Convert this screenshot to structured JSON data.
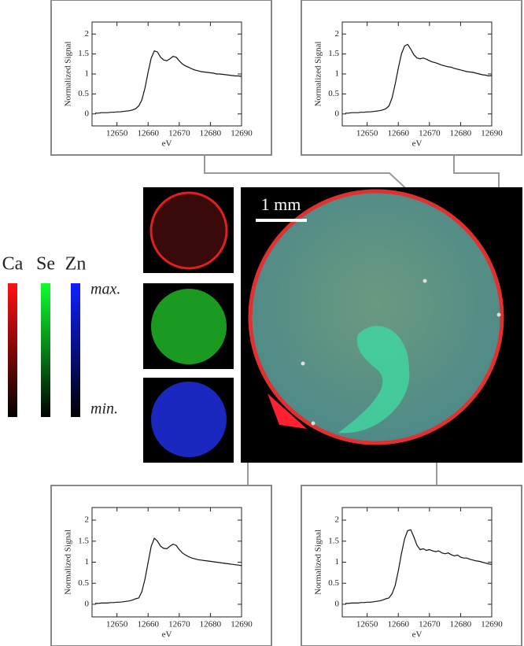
{
  "chart_data": [
    {
      "type": "line",
      "x_label": "eV",
      "y_label": "Normalized Signal",
      "x": [
        12643,
        12644,
        12645,
        12646,
        12647,
        12648,
        12649,
        12650,
        12651,
        12652,
        12653,
        12654,
        12655,
        12656,
        12657,
        12658,
        12659,
        12660,
        12661,
        12662,
        12663,
        12664,
        12665,
        12666,
        12667,
        12668,
        12669,
        12670,
        12671,
        12672,
        12673,
        12674,
        12675,
        12676,
        12677,
        12678,
        12679,
        12680,
        12681,
        12682,
        12683,
        12684,
        12685,
        12686,
        12687,
        12688,
        12689,
        12690
      ],
      "values": [
        0.02,
        0.02,
        0.03,
        0.03,
        0.03,
        0.04,
        0.04,
        0.05,
        0.05,
        0.06,
        0.07,
        0.08,
        0.1,
        0.13,
        0.2,
        0.35,
        0.65,
        1.05,
        1.4,
        1.58,
        1.55,
        1.42,
        1.35,
        1.33,
        1.38,
        1.44,
        1.42,
        1.33,
        1.25,
        1.2,
        1.17,
        1.13,
        1.1,
        1.08,
        1.06,
        1.05,
        1.04,
        1.03,
        1.02,
        1.0,
        1.0,
        0.99,
        0.98,
        0.97,
        0.96,
        0.95,
        0.95,
        0.94
      ],
      "color": "#111111",
      "xlim": [
        12642,
        12690
      ],
      "ylim": [
        -0.3,
        2.3
      ],
      "xticks": [
        12650,
        12660,
        12670,
        12680,
        12690
      ],
      "yticks": [
        0,
        0.5,
        1,
        1.5,
        2
      ]
    },
    {
      "type": "line",
      "x_label": "eV",
      "y_label": "Normalized Signal",
      "x": [
        12643,
        12644,
        12645,
        12646,
        12647,
        12648,
        12649,
        12650,
        12651,
        12652,
        12653,
        12654,
        12655,
        12656,
        12657,
        12658,
        12659,
        12660,
        12661,
        12662,
        12663,
        12664,
        12665,
        12666,
        12667,
        12668,
        12669,
        12670,
        12671,
        12672,
        12673,
        12674,
        12675,
        12676,
        12677,
        12678,
        12679,
        12680,
        12681,
        12682,
        12683,
        12684,
        12685,
        12686,
        12687,
        12688,
        12689,
        12690
      ],
      "values": [
        0.02,
        0.02,
        0.03,
        0.03,
        0.03,
        0.04,
        0.04,
        0.05,
        0.05,
        0.06,
        0.07,
        0.08,
        0.1,
        0.13,
        0.2,
        0.4,
        0.75,
        1.15,
        1.5,
        1.7,
        1.74,
        1.62,
        1.48,
        1.4,
        1.38,
        1.4,
        1.37,
        1.33,
        1.3,
        1.28,
        1.25,
        1.22,
        1.2,
        1.18,
        1.17,
        1.14,
        1.12,
        1.1,
        1.08,
        1.06,
        1.05,
        1.04,
        1.02,
        1.0,
        0.98,
        0.97,
        0.95,
        0.96
      ],
      "color": "#111111",
      "xlim": [
        12642,
        12690
      ],
      "ylim": [
        -0.3,
        2.3
      ],
      "xticks": [
        12650,
        12660,
        12670,
        12680,
        12690
      ],
      "yticks": [
        0,
        0.5,
        1,
        1.5,
        2
      ]
    },
    {
      "type": "line",
      "x_label": "eV",
      "y_label": "Normalized Signal",
      "x": [
        12643,
        12644,
        12645,
        12646,
        12647,
        12648,
        12649,
        12650,
        12651,
        12652,
        12653,
        12654,
        12655,
        12656,
        12657,
        12658,
        12659,
        12660,
        12661,
        12662,
        12663,
        12664,
        12665,
        12666,
        12667,
        12668,
        12669,
        12670,
        12671,
        12672,
        12673,
        12674,
        12675,
        12676,
        12677,
        12678,
        12679,
        12680,
        12681,
        12682,
        12683,
        12684,
        12685,
        12686,
        12687,
        12688,
        12689,
        12690
      ],
      "values": [
        0.02,
        0.02,
        0.03,
        0.03,
        0.03,
        0.04,
        0.04,
        0.05,
        0.05,
        0.06,
        0.07,
        0.08,
        0.1,
        0.13,
        0.15,
        0.3,
        0.6,
        1.0,
        1.38,
        1.57,
        1.5,
        1.38,
        1.33,
        1.32,
        1.38,
        1.43,
        1.4,
        1.3,
        1.22,
        1.17,
        1.13,
        1.1,
        1.08,
        1.06,
        1.05,
        1.04,
        1.03,
        1.02,
        1.01,
        1.0,
        0.99,
        0.98,
        0.97,
        0.96,
        0.95,
        0.94,
        0.93,
        0.92
      ],
      "color": "#111111",
      "xlim": [
        12642,
        12690
      ],
      "ylim": [
        -0.3,
        2.3
      ],
      "xticks": [
        12650,
        12660,
        12670,
        12680,
        12690
      ],
      "yticks": [
        0,
        0.5,
        1,
        1.5,
        2
      ]
    },
    {
      "type": "line",
      "x_label": "eV",
      "y_label": "Normalized Signal",
      "x": [
        12643,
        12644,
        12645,
        12646,
        12647,
        12648,
        12649,
        12650,
        12651,
        12652,
        12653,
        12654,
        12655,
        12656,
        12657,
        12658,
        12659,
        12660,
        12661,
        12662,
        12663,
        12664,
        12665,
        12666,
        12667,
        12668,
        12669,
        12670,
        12671,
        12672,
        12673,
        12674,
        12675,
        12676,
        12677,
        12678,
        12679,
        12680,
        12681,
        12682,
        12683,
        12684,
        12685,
        12686,
        12687,
        12688,
        12689,
        12690
      ],
      "values": [
        0.02,
        0.02,
        0.03,
        0.03,
        0.03,
        0.04,
        0.04,
        0.05,
        0.05,
        0.06,
        0.07,
        0.08,
        0.1,
        0.13,
        0.15,
        0.25,
        0.45,
        0.8,
        1.2,
        1.55,
        1.75,
        1.77,
        1.6,
        1.4,
        1.3,
        1.32,
        1.28,
        1.3,
        1.27,
        1.25,
        1.27,
        1.22,
        1.2,
        1.22,
        1.18,
        1.15,
        1.17,
        1.12,
        1.1,
        1.1,
        1.07,
        1.05,
        1.03,
        1.02,
        1.0,
        0.98,
        0.96,
        0.95
      ],
      "color": "#111111",
      "xlim": [
        12642,
        12690
      ],
      "ylim": [
        -0.3,
        2.3
      ],
      "xticks": [
        12650,
        12660,
        12670,
        12680,
        12690
      ],
      "yticks": [
        0,
        0.5,
        1,
        1.5,
        2
      ]
    }
  ],
  "image": {
    "scale_bar": "1 mm",
    "channels": [
      "Ca",
      "Se",
      "Zn"
    ],
    "max_label": "max.",
    "min_label": "min."
  }
}
